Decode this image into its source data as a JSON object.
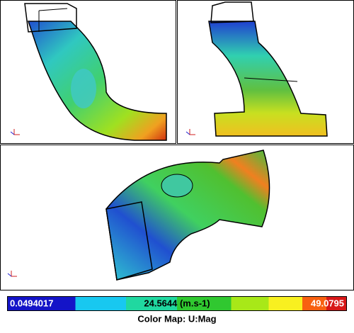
{
  "colorbar": {
    "min": "0.0494017",
    "mid": "24.5644 (m.s-1)",
    "max": "49.0795",
    "caption": "Color Map: U:Mag"
  }
}
